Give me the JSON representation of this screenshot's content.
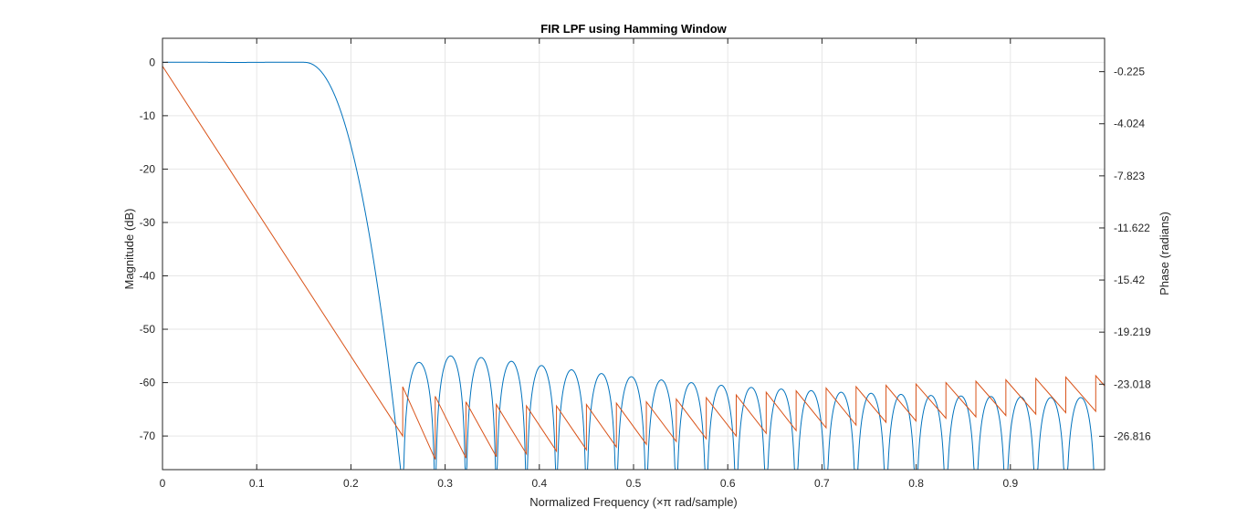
{
  "chart_data": {
    "type": "line",
    "title": "FIR LPF using Hamming Window",
    "xlabel": "Normalized Frequency (×π rad/sample)",
    "ylabel_left": "Magnitude (dB)",
    "ylabel_right": "Phase (radians)",
    "grid": true,
    "xlim": [
      0,
      1
    ],
    "ylim_left": [
      -76.3,
      4.5
    ],
    "ylim_right": [
      -29.25,
      2.21
    ],
    "x_ticks": [
      "0",
      "0.1",
      "0.2",
      "0.3",
      "0.4",
      "0.5",
      "0.6",
      "0.7",
      "0.8",
      "0.9"
    ],
    "y_ticks_left": [
      "0",
      "-10",
      "-20",
      "-30",
      "-40",
      "-50",
      "-60",
      "-70"
    ],
    "y_ticks_right": [
      "-0.225",
      "-4.024",
      "-7.823",
      "-11.622",
      "-15.42",
      "-19.219",
      "-23.018",
      "-26.816"
    ],
    "series": [
      {
        "axis": "left",
        "color": "#0072BD",
        "passband_edge": 0.15,
        "first_null": 0.255,
        "sidelobe_nulls": [
          0.255,
          0.2895,
          0.3221,
          0.3543,
          0.3863,
          0.4182,
          0.45,
          0.4818,
          0.5136,
          0.5454,
          0.5772,
          0.609,
          0.6408,
          0.6726,
          0.7044,
          0.7362,
          0.768,
          0.7998,
          0.8316,
          0.8634,
          0.8952,
          0.927,
          0.9588,
          0.9906
        ],
        "sidelobe_peaks_db": [
          -56.2,
          -55.0,
          -55.3,
          -56.0,
          -56.8,
          -57.6,
          -58.3,
          -58.9,
          -59.5,
          -60.0,
          -60.5,
          -60.9,
          -61.2,
          -61.5,
          -61.8,
          -62.0,
          -62.2,
          -62.4,
          -62.5,
          -62.6,
          -62.7,
          -62.8,
          -62.8
        ]
      },
      {
        "axis": "right",
        "color": "#D95319",
        "start": [
          0.0,
          0.18
        ],
        "first_drop": [
          0.255,
          -26.8
        ],
        "wrap_points_x": [
          0.255,
          0.2895,
          0.3221,
          0.3543,
          0.3863,
          0.4182,
          0.45,
          0.4818,
          0.5136,
          0.5454,
          0.5772,
          0.609,
          0.6408,
          0.6726,
          0.7044,
          0.7362,
          0.768,
          0.7998,
          0.8316,
          0.8634,
          0.8952,
          0.927,
          0.9588,
          0.9906
        ],
        "segment_tops": [
          -23.2,
          -23.9,
          -24.3,
          -24.5,
          -24.6,
          -24.6,
          -24.5,
          -24.4,
          -24.3,
          -24.1,
          -24.0,
          -23.8,
          -23.6,
          -23.5,
          -23.3,
          -23.2,
          -23.1,
          -23.0,
          -22.9,
          -22.8,
          -22.7,
          -22.6,
          -22.5,
          -22.4
        ],
        "segment_bottoms": [
          -28.5,
          -28.4,
          -28.3,
          -28.1,
          -27.9,
          -27.8,
          -27.6,
          -27.4,
          -27.2,
          -27.0,
          -26.8,
          -26.6,
          -26.4,
          -26.2,
          -26.0,
          -25.8,
          -25.7,
          -25.5,
          -25.4,
          -25.3,
          -25.2,
          -25.1,
          -25.0,
          -24.9
        ]
      }
    ]
  }
}
